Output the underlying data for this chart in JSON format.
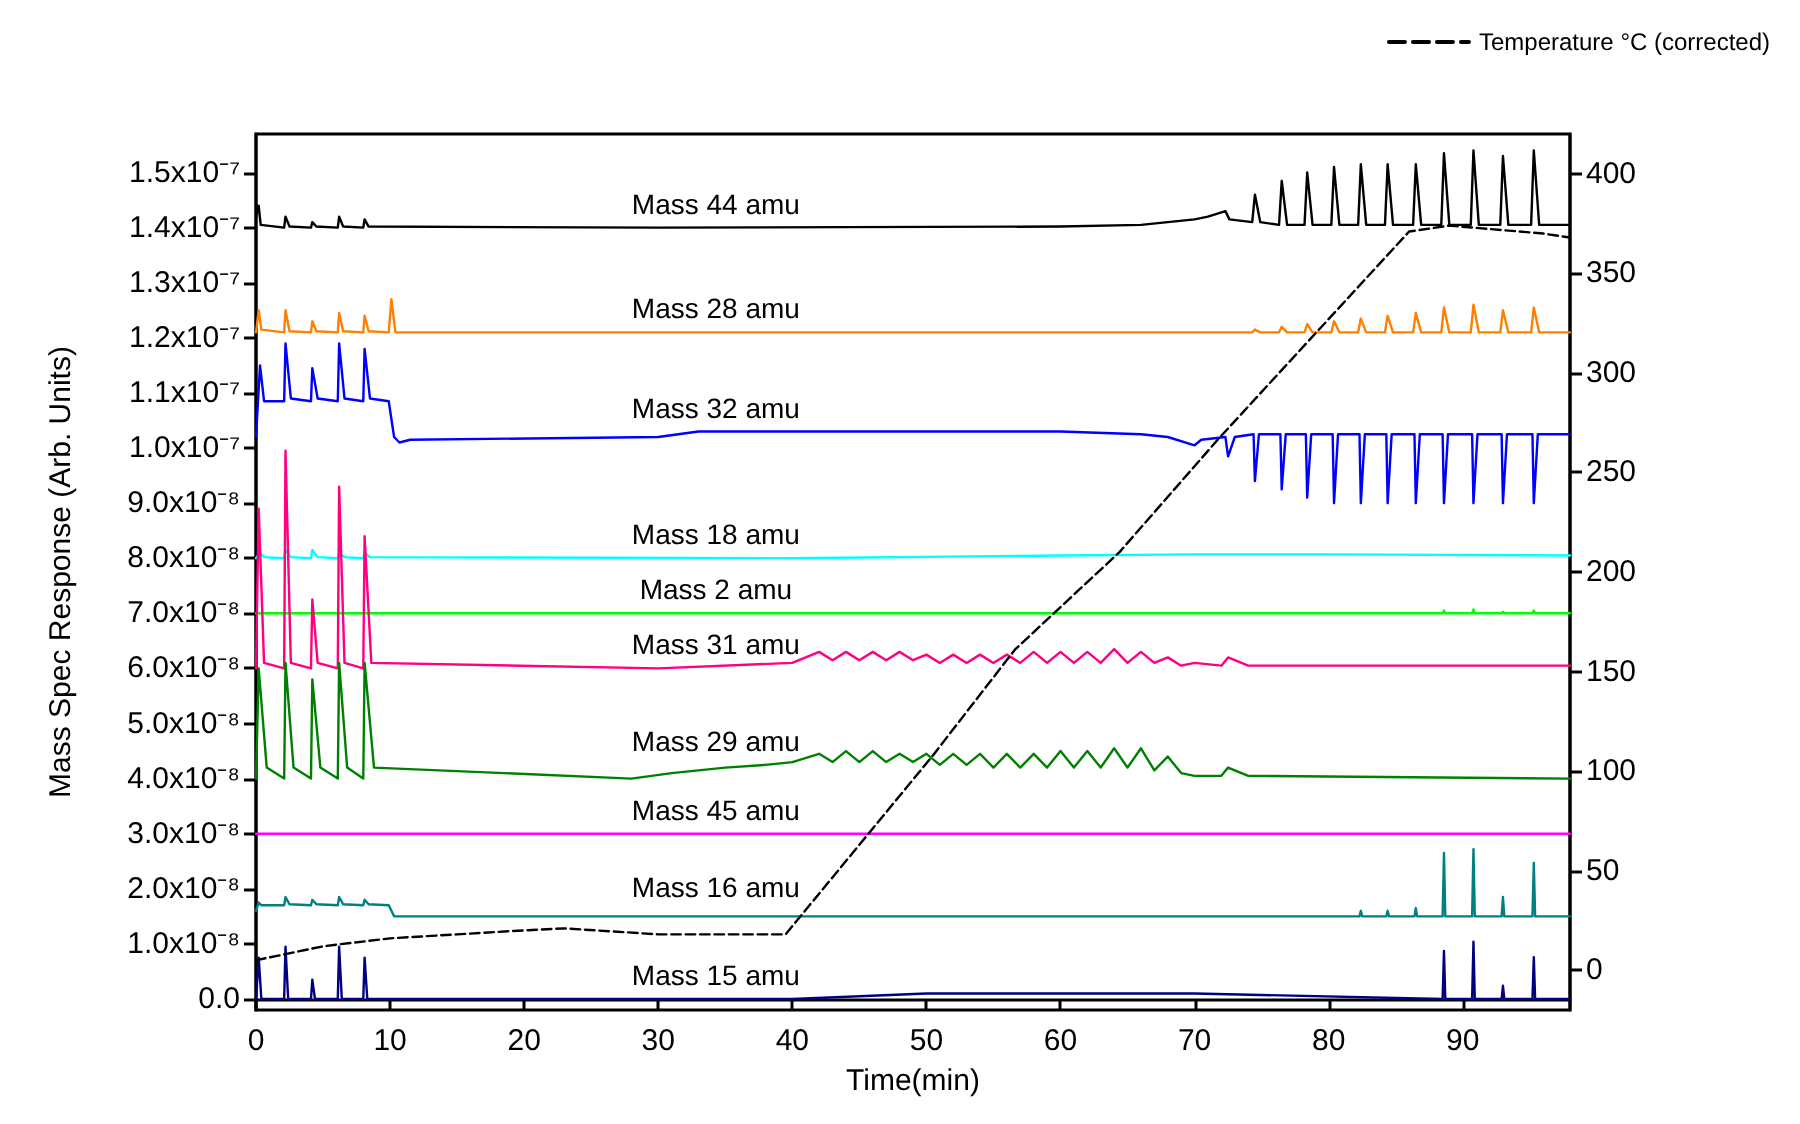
{
  "chart_data": {
    "type": "line",
    "xlabel": "Time(min)",
    "ylabel": "Mass Spec Response (Arb. Units)",
    "xlim": [
      0,
      98
    ],
    "xticks": [
      0,
      10,
      20,
      30,
      40,
      50,
      60,
      70,
      80,
      90
    ],
    "ylim": [
      -2e-09,
      1.57e-07
    ],
    "yticks": [
      {
        "value": 0,
        "label": "0.0"
      },
      {
        "value": 1e-08,
        "label": "1.0x10⁻⁸"
      },
      {
        "value": 2e-08,
        "label": "2.0x10⁻⁸"
      },
      {
        "value": 3e-08,
        "label": "3.0x10⁻⁸"
      },
      {
        "value": 4e-08,
        "label": "4.0x10⁻⁸"
      },
      {
        "value": 5e-08,
        "label": "5.0x10⁻⁸"
      },
      {
        "value": 6e-08,
        "label": "6.0x10⁻⁸"
      },
      {
        "value": 7e-08,
        "label": "7.0x10⁻⁸"
      },
      {
        "value": 8e-08,
        "label": "8.0x10⁻⁸"
      },
      {
        "value": 9e-08,
        "label": "9.0x10⁻⁸"
      },
      {
        "value": 1e-07,
        "label": "1.0x10⁻⁷"
      },
      {
        "value": 1.1e-07,
        "label": "1.1x10⁻⁷"
      },
      {
        "value": 1.2e-07,
        "label": "1.2x10⁻⁷"
      },
      {
        "value": 1.3e-07,
        "label": "1.3x10⁻⁷"
      },
      {
        "value": 1.4e-07,
        "label": "1.4x10⁻⁷"
      },
      {
        "value": 1.5e-07,
        "label": "1.5x10⁻⁷"
      }
    ],
    "y2lim": [
      -20,
      420
    ],
    "y2ticks": [
      0,
      50,
      100,
      150,
      200,
      250,
      300,
      350,
      400
    ],
    "grid": false,
    "legend": "top right",
    "marker": "none",
    "series": [
      {
        "name": "Mass 44 amu",
        "color": "#000000",
        "x": [
          0,
          0.2,
          0.35,
          2.1,
          2.2,
          2.5,
          4.1,
          4.2,
          4.5,
          6.1,
          6.2,
          6.5,
          8.0,
          8.1,
          8.4,
          30,
          60,
          66,
          68,
          70,
          71,
          72.3,
          72.6,
          74.3,
          74.5,
          74.9,
          76.3,
          76.5,
          76.9,
          78.2,
          78.4,
          78.8,
          80.2,
          80.4,
          80.8,
          82.2,
          82.4,
          82.8,
          84.2,
          84.4,
          84.8,
          86.3,
          86.5,
          86.9,
          88.4,
          88.6,
          89,
          90.6,
          90.8,
          91.2,
          92.8,
          93,
          93.4,
          95.1,
          95.3,
          95.7,
          98
        ],
        "values": [
          1.42e-07,
          1.44e-07,
          1.405e-07,
          1.4e-07,
          1.42e-07,
          1.402e-07,
          1.4e-07,
          1.41e-07,
          1.402e-07,
          1.4e-07,
          1.42e-07,
          1.402e-07,
          1.4e-07,
          1.415e-07,
          1.402e-07,
          1.4e-07,
          1.402e-07,
          1.405e-07,
          1.41e-07,
          1.415e-07,
          1.42e-07,
          1.43e-07,
          1.415e-07,
          1.41e-07,
          1.46e-07,
          1.41e-07,
          1.405e-07,
          1.485e-07,
          1.405e-07,
          1.405e-07,
          1.5e-07,
          1.405e-07,
          1.405e-07,
          1.51e-07,
          1.405e-07,
          1.405e-07,
          1.515e-07,
          1.405e-07,
          1.405e-07,
          1.515e-07,
          1.405e-07,
          1.405e-07,
          1.515e-07,
          1.405e-07,
          1.405e-07,
          1.535e-07,
          1.405e-07,
          1.405e-07,
          1.54e-07,
          1.405e-07,
          1.405e-07,
          1.53e-07,
          1.405e-07,
          1.405e-07,
          1.54e-07,
          1.405e-07,
          1.405e-07
        ]
      },
      {
        "name": "Mass 28 amu",
        "color": "#ff8000",
        "x": [
          0,
          0.2,
          0.4,
          2.1,
          2.2,
          2.5,
          4.1,
          4.2,
          4.5,
          6.1,
          6.2,
          6.5,
          8.0,
          8.1,
          8.4,
          9.9,
          10.1,
          10.4,
          74.3,
          74.5,
          74.9,
          76.3,
          76.5,
          76.9,
          78.2,
          78.4,
          78.8,
          80.2,
          80.4,
          80.8,
          82.2,
          82.4,
          82.8,
          84.2,
          84.4,
          84.8,
          86.3,
          86.5,
          86.9,
          88.4,
          88.6,
          89,
          90.6,
          90.8,
          91.2,
          92.8,
          93,
          93.4,
          95.1,
          95.3,
          95.7,
          98
        ],
        "values": [
          1.21e-07,
          1.25e-07,
          1.215e-07,
          1.21e-07,
          1.25e-07,
          1.212e-07,
          1.21e-07,
          1.23e-07,
          1.212e-07,
          1.21e-07,
          1.245e-07,
          1.212e-07,
          1.21e-07,
          1.24e-07,
          1.212e-07,
          1.21e-07,
          1.27e-07,
          1.21e-07,
          1.21e-07,
          1.215e-07,
          1.21e-07,
          1.21e-07,
          1.22e-07,
          1.21e-07,
          1.21e-07,
          1.225e-07,
          1.21e-07,
          1.21e-07,
          1.23e-07,
          1.21e-07,
          1.21e-07,
          1.235e-07,
          1.21e-07,
          1.21e-07,
          1.24e-07,
          1.21e-07,
          1.21e-07,
          1.245e-07,
          1.21e-07,
          1.21e-07,
          1.255e-07,
          1.21e-07,
          1.21e-07,
          1.26e-07,
          1.21e-07,
          1.21e-07,
          1.25e-07,
          1.21e-07,
          1.21e-07,
          1.255e-07,
          1.21e-07,
          1.21e-07
        ]
      },
      {
        "name": "Mass 32 amu",
        "color": "#0000ff",
        "x": [
          0,
          0.3,
          0.6,
          2.1,
          2.2,
          2.6,
          4.1,
          4.2,
          4.6,
          6.1,
          6.2,
          6.6,
          8.0,
          8.1,
          8.5,
          9.9,
          10.3,
          10.7,
          11.5,
          30,
          33,
          40,
          50,
          60,
          66,
          68,
          70,
          70.5,
          72.3,
          72.5,
          73,
          74.4,
          74.5,
          74.8,
          76.4,
          76.5,
          76.8,
          78.3,
          78.4,
          78.7,
          80.3,
          80.4,
          80.7,
          82.3,
          82.4,
          82.7,
          84.3,
          84.4,
          84.7,
          86.4,
          86.5,
          86.8,
          88.5,
          88.6,
          88.9,
          90.7,
          90.8,
          91.1,
          92.9,
          93,
          93.3,
          95.2,
          95.3,
          95.6,
          98
        ],
        "values": [
          1.02e-07,
          1.15e-07,
          1.085e-07,
          1.085e-07,
          1.19e-07,
          1.09e-07,
          1.085e-07,
          1.145e-07,
          1.09e-07,
          1.085e-07,
          1.19e-07,
          1.09e-07,
          1.085e-07,
          1.18e-07,
          1.09e-07,
          1.085e-07,
          1.02e-07,
          1.01e-07,
          1.015e-07,
          1.02e-07,
          1.03e-07,
          1.03e-07,
          1.03e-07,
          1.03e-07,
          1.025e-07,
          1.02e-07,
          1.005e-07,
          1.015e-07,
          1.02e-07,
          9.85e-08,
          1.02e-07,
          1.025e-07,
          9.4e-08,
          1.025e-07,
          1.025e-07,
          9.25e-08,
          1.025e-07,
          1.025e-07,
          9.1e-08,
          1.025e-07,
          1.025e-07,
          9e-08,
          1.025e-07,
          1.025e-07,
          9e-08,
          1.025e-07,
          1.025e-07,
          9e-08,
          1.025e-07,
          1.025e-07,
          9e-08,
          1.025e-07,
          1.025e-07,
          9e-08,
          1.025e-07,
          1.025e-07,
          9e-08,
          1.025e-07,
          1.025e-07,
          9e-08,
          1.025e-07,
          1.025e-07,
          9e-08,
          1.025e-07,
          1.025e-07
        ]
      },
      {
        "name": "Mass 18 amu",
        "color": "#00ffff",
        "x": [
          0,
          0.3,
          0.6,
          2.1,
          2.2,
          2.6,
          4.1,
          4.2,
          4.6,
          6.1,
          6.2,
          6.6,
          8.0,
          8.1,
          8.5,
          40,
          60,
          70,
          80,
          98
        ],
        "values": [
          8e-08,
          8.1e-08,
          8.02e-08,
          8e-08,
          8.15e-08,
          8.02e-08,
          8e-08,
          8.15e-08,
          8.02e-08,
          8e-08,
          8.1e-08,
          8.02e-08,
          8e-08,
          8.1e-08,
          8.02e-08,
          8e-08,
          8.05e-08,
          8.07e-08,
          8.07e-08,
          8.05e-08
        ]
      },
      {
        "name": "Mass 2 amu",
        "color": "#00ff00",
        "x": [
          0,
          88.5,
          88.6,
          88.7,
          90.7,
          90.8,
          90.9,
          92.9,
          93,
          93.1,
          95.2,
          95.3,
          95.4,
          98
        ],
        "values": [
          7e-08,
          7e-08,
          7.05e-08,
          7e-08,
          7e-08,
          7.07e-08,
          7e-08,
          7e-08,
          7.03e-08,
          7e-08,
          7e-08,
          7.05e-08,
          7e-08,
          7e-08
        ]
      },
      {
        "name": "Mass 31 amu",
        "color": "#ff0080",
        "x": [
          0,
          0.2,
          0.6,
          2.1,
          2.2,
          2.6,
          4.1,
          4.2,
          4.6,
          6.1,
          6.2,
          6.6,
          8.0,
          8.1,
          8.6,
          30,
          40,
          42,
          43,
          44,
          45,
          46,
          47,
          48,
          49,
          50,
          51,
          52,
          53,
          54,
          55,
          56,
          57,
          58,
          59,
          60,
          61,
          62,
          63,
          64,
          65,
          66,
          67,
          68,
          69,
          70,
          72,
          72.5,
          74,
          98
        ],
        "values": [
          6e-08,
          8.9e-08,
          6.1e-08,
          6e-08,
          9.95e-08,
          6.1e-08,
          6e-08,
          7.25e-08,
          6.1e-08,
          6e-08,
          9.3e-08,
          6.1e-08,
          6e-08,
          8.4e-08,
          6.1e-08,
          6e-08,
          6.1e-08,
          6.3e-08,
          6.15e-08,
          6.3e-08,
          6.15e-08,
          6.3e-08,
          6.15e-08,
          6.3e-08,
          6.15e-08,
          6.25e-08,
          6.1e-08,
          6.25e-08,
          6.1e-08,
          6.25e-08,
          6.1e-08,
          6.25e-08,
          6.1e-08,
          6.3e-08,
          6.1e-08,
          6.3e-08,
          6.1e-08,
          6.3e-08,
          6.1e-08,
          6.35e-08,
          6.1e-08,
          6.3e-08,
          6.1e-08,
          6.2e-08,
          6.05e-08,
          6.1e-08,
          6.05e-08,
          6.2e-08,
          6.05e-08,
          6.05e-08
        ]
      },
      {
        "name": "Mass 29 amu",
        "color": "#008000",
        "x": [
          0,
          0.2,
          0.8,
          2.1,
          2.2,
          2.8,
          4.1,
          4.2,
          4.8,
          6.1,
          6.2,
          6.8,
          8.0,
          8.1,
          8.8,
          28,
          31,
          35,
          38,
          40,
          42,
          43,
          44,
          45,
          46,
          47,
          48,
          49,
          50,
          51,
          52,
          53,
          54,
          55,
          56,
          57,
          58,
          59,
          60,
          61,
          62,
          63,
          64,
          65,
          66,
          67,
          68,
          69,
          70,
          72,
          72.5,
          74,
          98
        ],
        "values": [
          4e-08,
          6e-08,
          4.2e-08,
          4e-08,
          6.1e-08,
          4.2e-08,
          4e-08,
          5.8e-08,
          4.2e-08,
          4e-08,
          6.1e-08,
          4.2e-08,
          4e-08,
          6.1e-08,
          4.2e-08,
          4e-08,
          4.1e-08,
          4.2e-08,
          4.25e-08,
          4.3e-08,
          4.45e-08,
          4.3e-08,
          4.5e-08,
          4.3e-08,
          4.5e-08,
          4.3e-08,
          4.45e-08,
          4.3e-08,
          4.45e-08,
          4.25e-08,
          4.45e-08,
          4.25e-08,
          4.45e-08,
          4.2e-08,
          4.45e-08,
          4.2e-08,
          4.45e-08,
          4.2e-08,
          4.5e-08,
          4.2e-08,
          4.5e-08,
          4.2e-08,
          4.55e-08,
          4.2e-08,
          4.55e-08,
          4.15e-08,
          4.4e-08,
          4.1e-08,
          4.05e-08,
          4.05e-08,
          4.2e-08,
          4.05e-08,
          4e-08
        ]
      },
      {
        "name": "Mass 45 amu",
        "color": "#ff00ff",
        "x": [
          0,
          98
        ],
        "values": [
          3e-08,
          3e-08
        ]
      },
      {
        "name": "Mass 16 amu",
        "color": "#008080",
        "x": [
          0,
          0.2,
          0.4,
          2.1,
          2.2,
          2.5,
          4.1,
          4.2,
          4.5,
          6.1,
          6.2,
          6.5,
          8.0,
          8.1,
          8.4,
          9.9,
          10.3,
          82.3,
          82.4,
          82.5,
          84.3,
          84.4,
          84.5,
          86.4,
          86.5,
          86.6,
          88.5,
          88.6,
          88.7,
          90.7,
          90.8,
          90.9,
          92.9,
          93,
          93.1,
          95.2,
          95.3,
          95.4,
          98
        ],
        "values": [
          1.6e-08,
          1.75e-08,
          1.7e-08,
          1.7e-08,
          1.85e-08,
          1.72e-08,
          1.7e-08,
          1.8e-08,
          1.72e-08,
          1.7e-08,
          1.85e-08,
          1.72e-08,
          1.7e-08,
          1.8e-08,
          1.72e-08,
          1.7e-08,
          1.5e-08,
          1.5e-08,
          1.6e-08,
          1.5e-08,
          1.5e-08,
          1.6e-08,
          1.5e-08,
          1.5e-08,
          1.65e-08,
          1.5e-08,
          1.5e-08,
          2.65e-08,
          1.5e-08,
          1.5e-08,
          2.72e-08,
          1.5e-08,
          1.5e-08,
          1.85e-08,
          1.5e-08,
          1.5e-08,
          2.47e-08,
          1.5e-08,
          1.5e-08
        ]
      },
      {
        "name": "Mass 15 amu",
        "color": "#000080",
        "x": [
          0,
          0.2,
          0.4,
          2.1,
          2.2,
          2.4,
          4.1,
          4.2,
          4.4,
          6.1,
          6.2,
          6.4,
          8.0,
          8.1,
          8.3,
          40,
          50,
          60,
          70,
          88.5,
          88.6,
          88.7,
          90.7,
          90.8,
          90.9,
          92.9,
          93,
          93.1,
          95.2,
          95.3,
          95.4,
          98
        ],
        "values": [
          0.0,
          7.5e-09,
          0.0,
          0.0,
          9.5e-09,
          0.0,
          0.0,
          3.5e-09,
          0.0,
          0.0,
          9.5e-09,
          0.0,
          0.0,
          7.5e-09,
          0.0,
          0.0,
          1e-09,
          1e-09,
          1e-09,
          0.0,
          8.7e-09,
          0.0,
          0.0,
          1.04e-08,
          0.0,
          0.0,
          2.4e-09,
          0.0,
          0.0,
          7.6e-09,
          0.0,
          0.0
        ]
      },
      {
        "name": "Temperature °C (corrected)",
        "color": "#000000",
        "axis": "y2",
        "line_style": "dashed",
        "x": [
          0,
          5,
          10,
          15,
          20,
          23,
          30,
          39.5,
          50.5,
          56.6,
          64.4,
          71.8,
          86,
          89,
          96,
          98
        ],
        "values": [
          5,
          12,
          16,
          18,
          20,
          21,
          18,
          18,
          108,
          161,
          210,
          267,
          371,
          374,
          370,
          368
        ]
      }
    ]
  }
}
